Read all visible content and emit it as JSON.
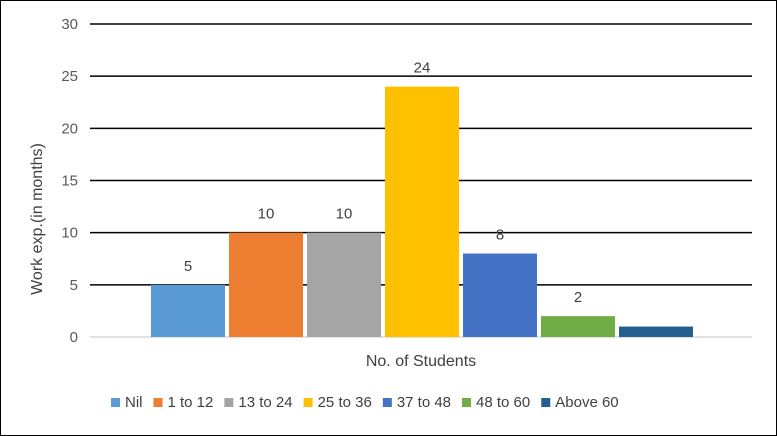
{
  "chart_data": {
    "type": "bar",
    "title": "",
    "xlabel": "No. of Students",
    "ylabel": "Work exp.(in months)",
    "ylim": [
      0,
      30
    ],
    "yticks": [
      0,
      5,
      10,
      15,
      20,
      25,
      30
    ],
    "grid": true,
    "legend_position": "bottom",
    "series": [
      {
        "name": "Nil",
        "value": 5,
        "label": "5",
        "color": "#5B9BD5"
      },
      {
        "name": "1 to 12",
        "value": 10,
        "label": "10",
        "color": "#ED7D31"
      },
      {
        "name": "13 to 24",
        "value": 10,
        "label": "10",
        "color": "#A5A5A5"
      },
      {
        "name": "25 to 36",
        "value": 24,
        "label": "24",
        "color": "#FFC000"
      },
      {
        "name": "37 to 48",
        "value": 8,
        "label": "8",
        "color": "#4472C4"
      },
      {
        "name": "48 to 60",
        "value": 2,
        "label": "2",
        "color": "#70AD47"
      },
      {
        "name": "Above 60",
        "value": 1,
        "label": "",
        "color": "#255E91"
      }
    ]
  }
}
